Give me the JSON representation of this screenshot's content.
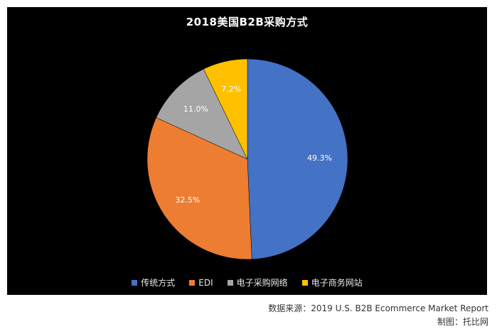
{
  "chart_data": {
    "type": "pie",
    "title": "2018美国B2B采购方式",
    "categories": [
      "传统方式",
      "EDI",
      "电子采购网络",
      "电子商务网站"
    ],
    "values": [
      49.3,
      32.5,
      11.0,
      7.2
    ],
    "labels": [
      "49.3%",
      "32.5%",
      "11.0%",
      "7.2%"
    ],
    "colors": [
      "#4472C4",
      "#ED7D31",
      "#A5A5A5",
      "#FFC000"
    ],
    "legend_position": "bottom"
  },
  "footer": {
    "source": "数据来源：2019 U.S. B2B Ecommerce Market Report",
    "credit": "制图：托比网"
  }
}
